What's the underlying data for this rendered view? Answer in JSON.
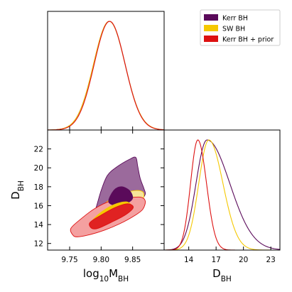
{
  "chart_data": {
    "type": "corner",
    "legend": {
      "placement": "top-right",
      "entries": [
        {
          "name": "Kerr BH",
          "color": "#5a0a5a"
        },
        {
          "name": "SW BH",
          "color": "#f5c800"
        },
        {
          "name": "Kerr BH + prior",
          "color": "#dd1111"
        }
      ]
    },
    "params": [
      {
        "key": "logM",
        "label_main": "log",
        "label_sub1": "10",
        "label_mid": "M",
        "label_sub2": "BH",
        "range": [
          9.715,
          9.9
        ],
        "ticks": [
          9.75,
          9.8,
          9.85
        ],
        "tick_labels": [
          "9.75",
          "9.80",
          "9.85"
        ]
      },
      {
        "key": "D",
        "label_main": "D",
        "label_sub": "BH",
        "range": [
          11.3,
          24.0
        ],
        "ticks": [
          12,
          14,
          16,
          18,
          20,
          22
        ],
        "tick_labels": [
          "12",
          "14",
          "16",
          "18",
          "20",
          "22"
        ]
      }
    ],
    "d_marginal_axis": {
      "range": [
        11.3,
        24.0
      ],
      "ticks": [
        14,
        17,
        20,
        23
      ],
      "tick_labels": [
        "14",
        "17",
        "20",
        "23"
      ]
    },
    "marginals": {
      "logM": {
        "series": [
          {
            "name": "Kerr BH",
            "color": "#5a0a5a",
            "mean": 9.813,
            "sd": 0.025
          },
          {
            "name": "SW BH",
            "color": "#f5c800",
            "mean": 9.813,
            "sd": 0.025
          },
          {
            "name": "Kerr BH + prior",
            "color": "#dd1111",
            "mean": 9.8135,
            "sd": 0.0245
          }
        ]
      },
      "D": {
        "series": [
          {
            "name": "Kerr BH",
            "color": "#5a0a5a",
            "mode": 16.0,
            "sd_left": 1.2,
            "sd_right": 2.5,
            "peak": 1.0
          },
          {
            "name": "SW BH",
            "color": "#f5c800",
            "mode": 16.2,
            "sd_left": 1.1,
            "sd_right": 1.55,
            "peak": 1.0
          },
          {
            "name": "Kerr BH + prior",
            "color": "#dd1111",
            "mode": 15.0,
            "sd_left": 0.8,
            "sd_right": 0.95,
            "peak": 1.0
          }
        ]
      }
    },
    "contours": [
      {
        "name": "Kerr BH",
        "level": "outer",
        "fill": "#9b6a9c",
        "stroke": "#5a0a5a",
        "points": [
          [
            9.78,
            14.2
          ],
          [
            9.79,
            15.4
          ],
          [
            9.8,
            17.6
          ],
          [
            9.81,
            19.2
          ],
          [
            9.825,
            20.1
          ],
          [
            9.845,
            20.9
          ],
          [
            9.855,
            21.1
          ],
          [
            9.858,
            20.2
          ],
          [
            9.862,
            18.9
          ],
          [
            9.868,
            17.8
          ],
          [
            9.87,
            17.2
          ],
          [
            9.862,
            16.6
          ],
          [
            9.845,
            16.3
          ],
          [
            9.825,
            16.0
          ],
          [
            9.805,
            15.3
          ],
          [
            9.785,
            14.2
          ],
          [
            9.772,
            13.4
          ],
          [
            9.76,
            13.3
          ],
          [
            9.762,
            13.8
          ]
        ]
      },
      {
        "name": "SW BH",
        "level": "outer",
        "fill": "#f7e49a",
        "stroke": "#f5c800",
        "points": [
          [
            9.755,
            13.6
          ],
          [
            9.775,
            14.6
          ],
          [
            9.795,
            15.6
          ],
          [
            9.815,
            16.7
          ],
          [
            9.835,
            17.3
          ],
          [
            9.855,
            17.6
          ],
          [
            9.867,
            17.4
          ],
          [
            9.866,
            16.6
          ],
          [
            9.855,
            16.1
          ],
          [
            9.835,
            15.7
          ],
          [
            9.815,
            15.0
          ],
          [
            9.795,
            14.2
          ],
          [
            9.775,
            13.4
          ],
          [
            9.758,
            13.1
          ]
        ]
      },
      {
        "name": "Kerr BH + prior",
        "level": "outer",
        "fill": "#f4a0a0",
        "stroke": "#dd1111",
        "points": [
          [
            9.755,
            12.9
          ],
          [
            9.752,
            13.6
          ],
          [
            9.768,
            14.6
          ],
          [
            9.79,
            15.7
          ],
          [
            9.815,
            16.5
          ],
          [
            9.84,
            16.8
          ],
          [
            9.862,
            16.9
          ],
          [
            9.87,
            16.5
          ],
          [
            9.866,
            15.6
          ],
          [
            9.852,
            14.9
          ],
          [
            9.83,
            14.1
          ],
          [
            9.805,
            13.4
          ],
          [
            9.78,
            12.9
          ],
          [
            9.762,
            12.7
          ]
        ]
      },
      {
        "name": "Kerr BH",
        "level": "inner",
        "fill": "#5a0a5a",
        "stroke": "#5a0a5a",
        "points": [
          [
            9.812,
            16.4
          ],
          [
            9.82,
            17.6
          ],
          [
            9.832,
            18.0
          ],
          [
            9.845,
            17.6
          ],
          [
            9.85,
            16.8
          ],
          [
            9.842,
            16.3
          ],
          [
            9.826,
            16.0
          ]
        ]
      },
      {
        "name": "SW BH",
        "level": "inner",
        "fill": "#f5c800",
        "stroke": "#f5c800",
        "points": [
          [
            9.785,
            14.3
          ],
          [
            9.8,
            15.3
          ],
          [
            9.82,
            16.1
          ],
          [
            9.84,
            16.4
          ],
          [
            9.848,
            15.9
          ],
          [
            9.835,
            15.3
          ],
          [
            9.815,
            14.7
          ],
          [
            9.795,
            14.1
          ]
        ]
      },
      {
        "name": "Kerr BH + prior",
        "level": "inner",
        "fill": "#e02222",
        "stroke": "#dd1111",
        "points": [
          [
            9.785,
            13.6
          ],
          [
            9.782,
            14.2
          ],
          [
            9.8,
            15.0
          ],
          [
            9.822,
            15.8
          ],
          [
            9.842,
            16.2
          ],
          [
            9.851,
            15.8
          ],
          [
            9.838,
            15.0
          ],
          [
            9.815,
            14.2
          ],
          [
            9.795,
            13.6
          ]
        ]
      }
    ]
  }
}
